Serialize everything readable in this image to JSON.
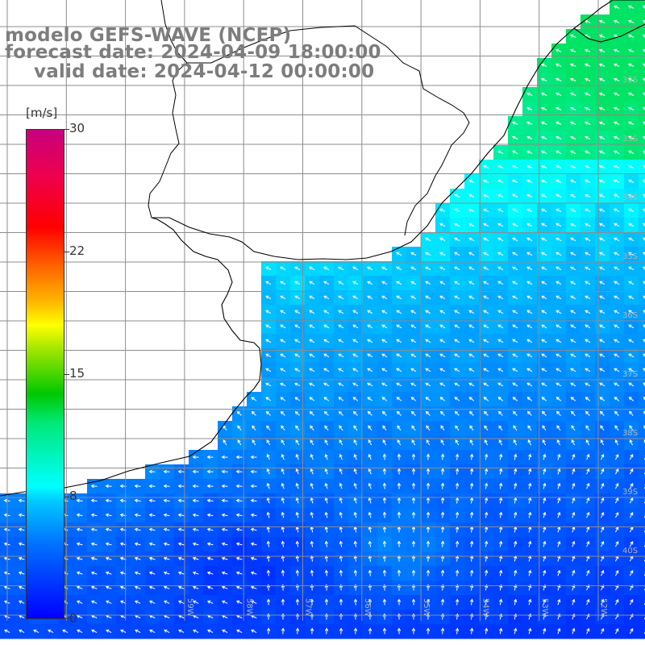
{
  "title": {
    "model": "modelo GEFS-WAVE (NCEP)",
    "forecast": "forecast date: 2024-04-09 18:00:00",
    "valid": "valid date: 2024-04-12 00:00:00"
  },
  "colorbar": {
    "unit": "[m/s]",
    "ticks": [
      "30",
      "22",
      "15",
      "8",
      "0"
    ],
    "range": [
      0,
      30
    ]
  },
  "map": {
    "field": "wind speed and direction",
    "lat_labels": [
      "32S",
      "33S",
      "34S",
      "35S",
      "36S",
      "37S",
      "38S",
      "39S",
      "40S"
    ],
    "lon_labels": [
      "59W",
      "58W",
      "57W",
      "56W",
      "55W",
      "54W",
      "53W",
      "52W"
    ],
    "colors": {
      "land": "#ffffff",
      "grid": "#8c8c8c",
      "coast": "#000000",
      "arrow": "#ffffff",
      "label": "#b4b4b4"
    }
  }
}
